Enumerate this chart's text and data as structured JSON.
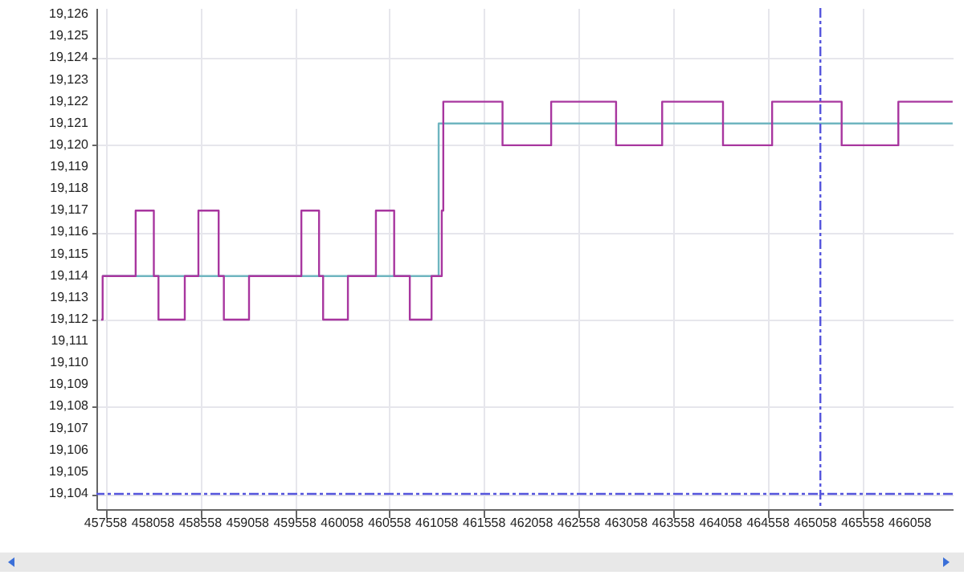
{
  "chart_data": {
    "type": "step",
    "xlim": [
      457460,
      466510
    ],
    "ylim": [
      19103.3,
      19126.3
    ],
    "xticks": [
      457558,
      458058,
      458558,
      459058,
      459558,
      460058,
      460558,
      461058,
      461558,
      462058,
      462558,
      463058,
      463558,
      464058,
      464558,
      465058,
      465558,
      466058
    ],
    "yticks": [
      {
        "value": 19104,
        "label": "19,104"
      },
      {
        "value": 19105,
        "label": "19,105"
      },
      {
        "value": 19106,
        "label": "19,106"
      },
      {
        "value": 19107,
        "label": "19,107"
      },
      {
        "value": 19108,
        "label": "19,108"
      },
      {
        "value": 19109,
        "label": "19,109"
      },
      {
        "value": 19110,
        "label": "19,110"
      },
      {
        "value": 19111,
        "label": "19,111"
      },
      {
        "value": 19112,
        "label": "19,112"
      },
      {
        "value": 19113,
        "label": "19,113"
      },
      {
        "value": 19114,
        "label": "19,114"
      },
      {
        "value": 19115,
        "label": "19,115"
      },
      {
        "value": 19116,
        "label": "19,116"
      },
      {
        "value": 19117,
        "label": "19,117"
      },
      {
        "value": 19118,
        "label": "19,118"
      },
      {
        "value": 19119,
        "label": "19,119"
      },
      {
        "value": 19120,
        "label": "19,120"
      },
      {
        "value": 19121,
        "label": "19,121"
      },
      {
        "value": 19122,
        "label": "19,122"
      },
      {
        "value": 19123,
        "label": "19,123"
      },
      {
        "value": 19124,
        "label": "19,124"
      },
      {
        "value": 19125,
        "label": "19,125"
      },
      {
        "value": 19126,
        "label": "19,126"
      }
    ],
    "grid": true,
    "marker": "none",
    "series": [
      {
        "color": "#6fb5c0",
        "x": [
          457526,
          461077,
          466509
        ],
        "values": [
          19114,
          19121,
          19121
        ]
      },
      {
        "color": "#a8369f",
        "x": [
          457510,
          457526,
          457875,
          458067,
          458116,
          458394,
          458538,
          458752,
          458807,
          459073,
          459626,
          459813,
          459856,
          460118,
          460414,
          460607,
          460772,
          461002,
          461110,
          461126,
          461752,
          462266,
          462952,
          463439,
          464082,
          464601,
          465336,
          465935,
          466509
        ],
        "values": [
          19112,
          19114,
          19117,
          19114,
          19112,
          19114,
          19117,
          19114,
          19112,
          19114,
          19117,
          19114,
          19112,
          19114,
          19117,
          19114,
          19112,
          19114,
          19117,
          19122,
          19120,
          19122,
          19120,
          19122,
          19120,
          19122,
          19120,
          19122,
          19122
        ]
      }
    ],
    "ref_lines": [
      {
        "axis": "y",
        "value": 19104,
        "color": "#5555dd",
        "line_style": "dashed"
      },
      {
        "axis": "x",
        "value": 465111,
        "color": "#5555dd",
        "line_style": "dashed"
      }
    ]
  }
}
